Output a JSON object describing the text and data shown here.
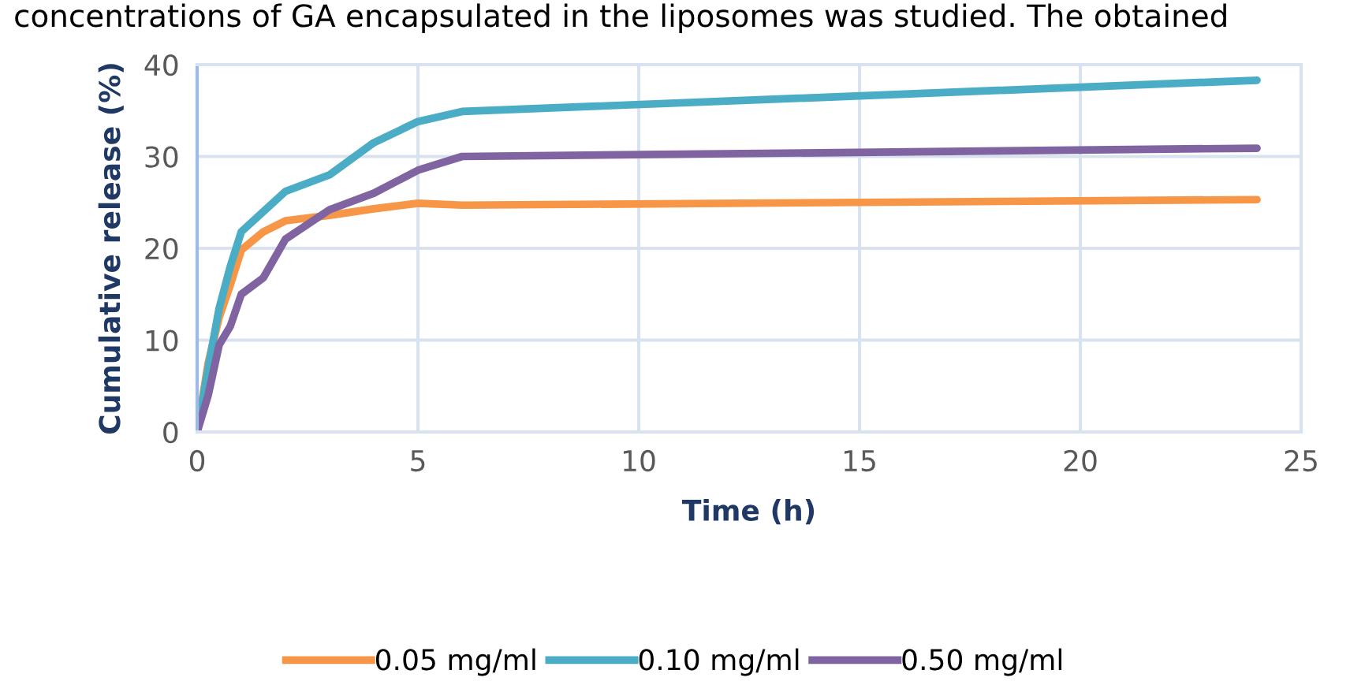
{
  "chart_data": {
    "type": "line",
    "annotations": [
      "concentrations of GA encapsulated in the liposomes was studied. The obtained"
    ],
    "xlabel": "Time (h)",
    "ylabel": "Cumulative release (%)",
    "x": [
      0,
      0.25,
      0.5,
      0.75,
      1,
      1.5,
      2,
      3,
      4,
      5,
      6,
      24
    ],
    "series": [
      {
        "name": "0.05 mg/ml",
        "color": "#f79646",
        "values": [
          0,
          7.5,
          12.5,
          16,
          19.8,
          21.8,
          23,
          23.6,
          24.3,
          24.9,
          24.7,
          25.3
        ]
      },
      {
        "name": "0.10 mg/ml",
        "color": "#4bacc6",
        "values": [
          0,
          7,
          13.5,
          18,
          21.8,
          24,
          26.2,
          28,
          31.5,
          33.8,
          34.9,
          38.3
        ]
      },
      {
        "name": "0.50 mg/ml",
        "color": "#8064a2",
        "values": [
          0,
          4,
          9.5,
          11.5,
          15,
          16.8,
          21,
          24.2,
          26,
          28.5,
          30,
          30.9
        ]
      }
    ],
    "xlim": [
      0,
      25
    ],
    "xticks": [
      0,
      5,
      10,
      15,
      20,
      25
    ],
    "ylim": [
      0,
      40
    ],
    "yticks": [
      0,
      10,
      20,
      30,
      40
    ],
    "grid": true,
    "legend": "bottom",
    "marker": "none",
    "line_style": "solid"
  }
}
